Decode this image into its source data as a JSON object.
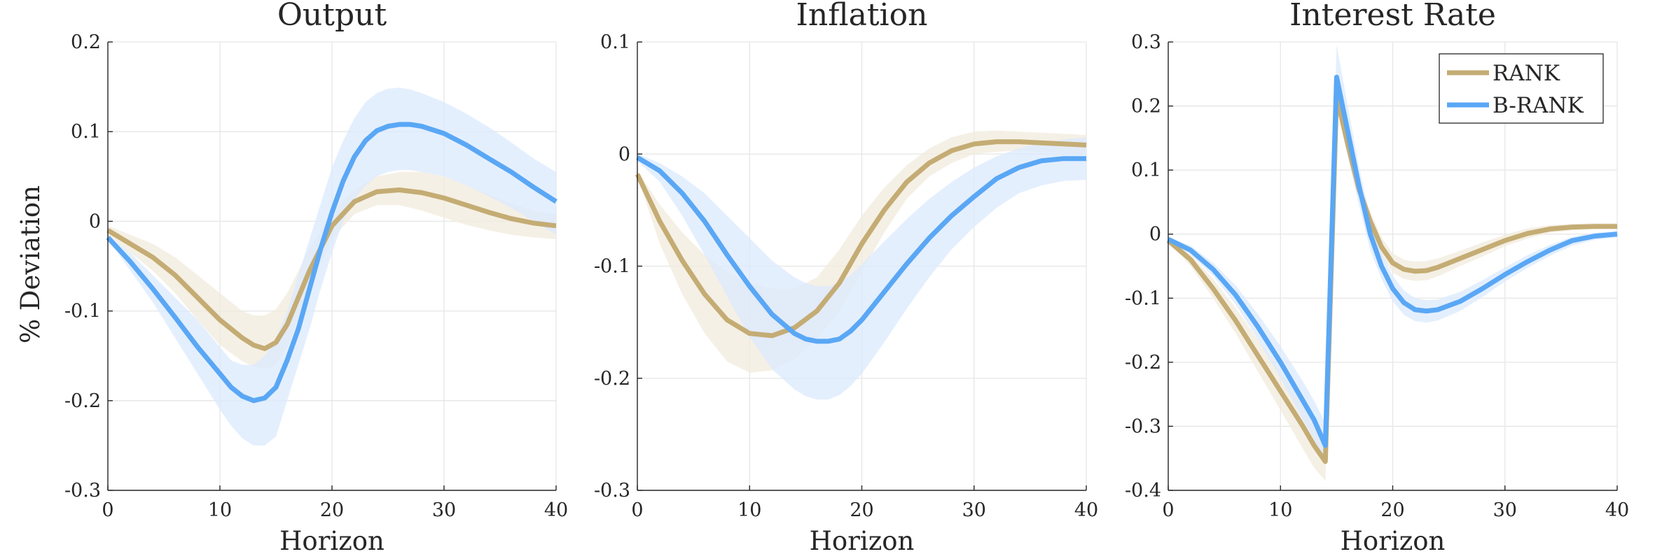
{
  "figure": {
    "ylabel": "% Deviation",
    "legend": {
      "placement": "top-right of third panel",
      "entries": [
        {
          "key": "rank",
          "label": "RANK",
          "color": "#c4ac74"
        },
        {
          "key": "brank",
          "label": "B-RANK",
          "color": "#5aa7f5"
        }
      ]
    },
    "band_colors": {
      "rank": "#f1ebdc",
      "brank": "#dbeafd"
    }
  },
  "chart_data": [
    {
      "type": "line",
      "title": "Output",
      "xlabel": "Horizon",
      "xlim": [
        0,
        40
      ],
      "ylim": [
        -0.3,
        0.2
      ],
      "xticks": [
        0,
        10,
        20,
        30,
        40
      ],
      "yticks": [
        -0.3,
        -0.2,
        -0.1,
        0,
        0.1,
        0.2
      ],
      "ytick_labels": [
        "-0.3",
        "-0.2",
        "-0.1",
        "0",
        "0.1",
        "0.2"
      ],
      "grid": true,
      "series": [
        {
          "key": "rank",
          "name": "RANK",
          "x": [
            0,
            2,
            4,
            6,
            8,
            10,
            12,
            13,
            14,
            15,
            16,
            18,
            20,
            22,
            24,
            26,
            28,
            30,
            32,
            34,
            36,
            38,
            40
          ],
          "y": [
            -0.01,
            -0.025,
            -0.04,
            -0.06,
            -0.085,
            -0.11,
            -0.13,
            -0.138,
            -0.142,
            -0.135,
            -0.115,
            -0.055,
            -0.005,
            0.022,
            0.033,
            0.035,
            0.032,
            0.026,
            0.018,
            0.01,
            0.003,
            -0.002,
            -0.005
          ],
          "band_upper": [
            -0.005,
            -0.015,
            -0.025,
            -0.04,
            -0.06,
            -0.08,
            -0.1,
            -0.105,
            -0.105,
            -0.098,
            -0.08,
            -0.03,
            0.01,
            0.035,
            0.05,
            0.055,
            0.055,
            0.05,
            0.04,
            0.03,
            0.02,
            0.012,
            0.008
          ],
          "band_lower": [
            -0.015,
            -0.035,
            -0.055,
            -0.08,
            -0.11,
            -0.138,
            -0.156,
            -0.162,
            -0.165,
            -0.16,
            -0.14,
            -0.075,
            -0.02,
            0.008,
            0.018,
            0.018,
            0.012,
            0.004,
            -0.004,
            -0.01,
            -0.015,
            -0.018,
            -0.02
          ]
        },
        {
          "key": "brank",
          "name": "B-RANK",
          "x": [
            0,
            2,
            4,
            6,
            8,
            10,
            11,
            12,
            13,
            14,
            15,
            16,
            17,
            18,
            19,
            20,
            21,
            22,
            23,
            24,
            25,
            26,
            27,
            28,
            30,
            32,
            34,
            36,
            38,
            40
          ],
          "y": [
            -0.018,
            -0.045,
            -0.075,
            -0.107,
            -0.14,
            -0.17,
            -0.185,
            -0.195,
            -0.2,
            -0.197,
            -0.185,
            -0.155,
            -0.12,
            -0.075,
            -0.03,
            0.01,
            0.045,
            0.072,
            0.09,
            0.101,
            0.106,
            0.108,
            0.108,
            0.106,
            0.098,
            0.085,
            0.07,
            0.055,
            0.038,
            0.022
          ],
          "band_upper": [
            -0.015,
            -0.035,
            -0.06,
            -0.085,
            -0.11,
            -0.14,
            -0.155,
            -0.16,
            -0.16,
            -0.15,
            -0.13,
            -0.1,
            -0.06,
            -0.02,
            0.02,
            0.06,
            0.09,
            0.115,
            0.133,
            0.143,
            0.148,
            0.149,
            0.147,
            0.143,
            0.133,
            0.12,
            0.105,
            0.088,
            0.07,
            0.055
          ],
          "band_lower": [
            -0.02,
            -0.055,
            -0.09,
            -0.13,
            -0.17,
            -0.21,
            -0.228,
            -0.242,
            -0.25,
            -0.25,
            -0.24,
            -0.2,
            -0.16,
            -0.12,
            -0.075,
            -0.035,
            0.0,
            0.025,
            0.04,
            0.05,
            0.055,
            0.057,
            0.057,
            0.055,
            0.05,
            0.04,
            0.028,
            0.015,
            0.0,
            -0.015
          ]
        }
      ]
    },
    {
      "type": "line",
      "title": "Inflation",
      "xlabel": "Horizon",
      "xlim": [
        0,
        40
      ],
      "ylim": [
        -0.3,
        0.1
      ],
      "xticks": [
        0,
        10,
        20,
        30,
        40
      ],
      "yticks": [
        -0.3,
        -0.2,
        -0.1,
        0,
        0.1
      ],
      "ytick_labels": [
        "-0.3",
        "-0.2",
        "-0.1",
        "0",
        "0.1"
      ],
      "grid": true,
      "series": [
        {
          "key": "rank",
          "name": "RANK",
          "x": [
            0,
            2,
            4,
            6,
            8,
            10,
            12,
            14,
            16,
            18,
            20,
            22,
            24,
            26,
            28,
            30,
            32,
            34,
            36,
            38,
            40
          ],
          "y": [
            -0.018,
            -0.06,
            -0.095,
            -0.125,
            -0.148,
            -0.16,
            -0.162,
            -0.155,
            -0.14,
            -0.115,
            -0.08,
            -0.05,
            -0.025,
            -0.008,
            0.003,
            0.009,
            0.011,
            0.011,
            0.01,
            0.009,
            0.008
          ],
          "band_upper": [
            -0.015,
            -0.045,
            -0.07,
            -0.09,
            -0.105,
            -0.115,
            -0.12,
            -0.12,
            -0.11,
            -0.085,
            -0.055,
            -0.03,
            -0.01,
            0.005,
            0.015,
            0.02,
            0.021,
            0.02,
            0.019,
            0.018,
            0.017
          ],
          "band_lower": [
            -0.02,
            -0.08,
            -0.125,
            -0.16,
            -0.185,
            -0.195,
            -0.193,
            -0.183,
            -0.165,
            -0.14,
            -0.105,
            -0.07,
            -0.04,
            -0.02,
            -0.008,
            0.0,
            0.002,
            0.003,
            0.002,
            0.001,
            0.0
          ]
        },
        {
          "key": "brank",
          "name": "B-RANK",
          "x": [
            0,
            2,
            4,
            6,
            8,
            10,
            12,
            14,
            15,
            16,
            17,
            18,
            19,
            20,
            22,
            24,
            26,
            28,
            30,
            32,
            34,
            36,
            38,
            40
          ],
          "y": [
            -0.003,
            -0.015,
            -0.035,
            -0.06,
            -0.09,
            -0.118,
            -0.143,
            -0.16,
            -0.165,
            -0.167,
            -0.167,
            -0.165,
            -0.158,
            -0.148,
            -0.123,
            -0.098,
            -0.075,
            -0.055,
            -0.038,
            -0.022,
            -0.012,
            -0.006,
            -0.004,
            -0.004
          ],
          "band_upper": [
            0.0,
            -0.008,
            -0.02,
            -0.035,
            -0.055,
            -0.075,
            -0.095,
            -0.11,
            -0.115,
            -0.118,
            -0.118,
            -0.115,
            -0.108,
            -0.098,
            -0.078,
            -0.058,
            -0.04,
            -0.025,
            -0.012,
            -0.002,
            0.005,
            0.01,
            0.013,
            0.015
          ],
          "band_lower": [
            -0.006,
            -0.025,
            -0.055,
            -0.09,
            -0.127,
            -0.163,
            -0.192,
            -0.21,
            -0.216,
            -0.219,
            -0.219,
            -0.215,
            -0.207,
            -0.196,
            -0.168,
            -0.138,
            -0.11,
            -0.085,
            -0.065,
            -0.048,
            -0.035,
            -0.028,
            -0.024,
            -0.023
          ]
        }
      ]
    },
    {
      "type": "line",
      "title": "Interest Rate",
      "xlabel": "Horizon",
      "xlim": [
        0,
        40
      ],
      "ylim": [
        -0.4,
        0.3
      ],
      "xticks": [
        0,
        10,
        20,
        30,
        40
      ],
      "yticks": [
        -0.4,
        -0.3,
        -0.2,
        -0.1,
        0,
        0.1,
        0.2,
        0.3
      ],
      "ytick_labels": [
        "-0.4",
        "-0.3",
        "-0.2",
        "-0.1",
        "0",
        "0.1",
        "0.2",
        "0.3"
      ],
      "grid": true,
      "series": [
        {
          "key": "rank",
          "name": "RANK",
          "x": [
            0,
            2,
            4,
            6,
            8,
            10,
            12,
            13,
            14,
            15,
            16,
            17,
            18,
            19,
            20,
            21,
            22,
            23,
            24,
            26,
            28,
            30,
            32,
            34,
            36,
            38,
            40
          ],
          "y": [
            -0.01,
            -0.04,
            -0.085,
            -0.135,
            -0.19,
            -0.245,
            -0.3,
            -0.33,
            -0.355,
            0.215,
            0.14,
            0.07,
            0.02,
            -0.02,
            -0.045,
            -0.055,
            -0.058,
            -0.057,
            -0.052,
            -0.038,
            -0.024,
            -0.01,
            0.001,
            0.008,
            0.011,
            0.012,
            0.012
          ],
          "band_upper": [
            -0.008,
            -0.032,
            -0.07,
            -0.115,
            -0.165,
            -0.215,
            -0.265,
            -0.295,
            -0.32,
            0.23,
            0.155,
            0.085,
            0.035,
            -0.005,
            -0.03,
            -0.04,
            -0.043,
            -0.042,
            -0.038,
            -0.026,
            -0.013,
            -0.001,
            0.009,
            0.014,
            0.016,
            0.017,
            0.017
          ],
          "band_lower": [
            -0.012,
            -0.05,
            -0.1,
            -0.155,
            -0.215,
            -0.275,
            -0.335,
            -0.365,
            -0.385,
            0.2,
            0.125,
            0.055,
            0.005,
            -0.035,
            -0.06,
            -0.07,
            -0.073,
            -0.072,
            -0.066,
            -0.05,
            -0.035,
            -0.019,
            -0.007,
            0.002,
            0.006,
            0.008,
            0.009
          ]
        },
        {
          "key": "brank",
          "name": "B-RANK",
          "x": [
            0,
            2,
            4,
            6,
            8,
            10,
            12,
            13,
            14,
            15,
            16,
            17,
            18,
            19,
            20,
            21,
            22,
            23,
            24,
            26,
            28,
            30,
            32,
            34,
            36,
            38,
            40
          ],
          "y": [
            -0.008,
            -0.025,
            -0.055,
            -0.095,
            -0.145,
            -0.2,
            -0.26,
            -0.29,
            -0.33,
            0.245,
            0.16,
            0.075,
            0.0,
            -0.05,
            -0.085,
            -0.107,
            -0.118,
            -0.12,
            -0.118,
            -0.105,
            -0.085,
            -0.063,
            -0.043,
            -0.025,
            -0.01,
            -0.003,
            0.0
          ],
          "band_upper": [
            -0.005,
            -0.018,
            -0.045,
            -0.08,
            -0.125,
            -0.175,
            -0.23,
            -0.26,
            -0.295,
            0.295,
            0.2,
            0.105,
            0.025,
            -0.03,
            -0.065,
            -0.088,
            -0.1,
            -0.103,
            -0.102,
            -0.09,
            -0.072,
            -0.052,
            -0.033,
            -0.017,
            -0.004,
            0.002,
            0.005
          ],
          "band_lower": [
            -0.011,
            -0.032,
            -0.065,
            -0.11,
            -0.165,
            -0.225,
            -0.29,
            -0.32,
            -0.36,
            0.2,
            0.12,
            0.045,
            -0.025,
            -0.07,
            -0.105,
            -0.126,
            -0.136,
            -0.138,
            -0.135,
            -0.12,
            -0.098,
            -0.074,
            -0.053,
            -0.034,
            -0.018,
            -0.009,
            -0.005
          ]
        }
      ]
    }
  ]
}
